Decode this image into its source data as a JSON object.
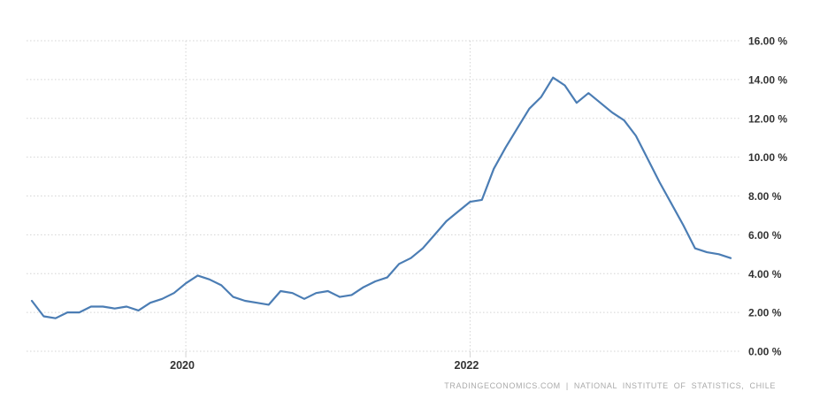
{
  "attribution": "TRADINGECONOMICS.COM | NATIONAL INSTITUTE OF STATISTICS, CHILE",
  "colors": {
    "line": "#4B7DB4",
    "grid": "#D4D4D4",
    "tick_label": "#333333",
    "attribution": "#AAAAAA",
    "background": "#FFFFFF"
  },
  "chart_data": {
    "type": "line",
    "grid": true,
    "legend": false,
    "ylim": [
      0,
      16
    ],
    "x": [
      "2018-12",
      "2019-01",
      "2019-02",
      "2019-03",
      "2019-04",
      "2019-05",
      "2019-06",
      "2019-07",
      "2019-08",
      "2019-09",
      "2019-10",
      "2019-11",
      "2019-12",
      "2020-01",
      "2020-02",
      "2020-03",
      "2020-04",
      "2020-05",
      "2020-06",
      "2020-07",
      "2020-08",
      "2020-09",
      "2020-10",
      "2020-11",
      "2020-12",
      "2021-01",
      "2021-02",
      "2021-03",
      "2021-04",
      "2021-05",
      "2021-06",
      "2021-07",
      "2021-08",
      "2021-09",
      "2021-10",
      "2021-11",
      "2021-12",
      "2022-01",
      "2022-02",
      "2022-03",
      "2022-04",
      "2022-05",
      "2022-06",
      "2022-07",
      "2022-08",
      "2022-09",
      "2022-10",
      "2022-11",
      "2022-12",
      "2023-01",
      "2023-02",
      "2023-03",
      "2023-04",
      "2023-05",
      "2023-06",
      "2023-07",
      "2023-08",
      "2023-09",
      "2023-10",
      "2023-11"
    ],
    "values": [
      2.6,
      1.8,
      1.7,
      2.0,
      2.0,
      2.3,
      2.3,
      2.2,
      2.3,
      2.1,
      2.5,
      2.7,
      3.0,
      3.5,
      3.9,
      3.7,
      3.4,
      2.8,
      2.6,
      2.5,
      2.4,
      3.1,
      3.0,
      2.7,
      3.0,
      3.1,
      2.8,
      2.9,
      3.3,
      3.6,
      3.8,
      4.5,
      4.8,
      5.3,
      6.0,
      6.7,
      7.2,
      7.7,
      7.8,
      9.4,
      10.5,
      11.5,
      12.5,
      13.1,
      14.1,
      13.7,
      12.8,
      13.3,
      12.8,
      12.3,
      11.9,
      11.1,
      9.9,
      8.7,
      7.6,
      6.5,
      5.3,
      5.1,
      5.0,
      4.8
    ],
    "y_ticks": [
      {
        "value": 16,
        "label": "16.00 %"
      },
      {
        "value": 14,
        "label": "14.00 %"
      },
      {
        "value": 12,
        "label": "12.00 %"
      },
      {
        "value": 10,
        "label": "10.00 %"
      },
      {
        "value": 8,
        "label": "8.00 %"
      },
      {
        "value": 6,
        "label": "6.00 %"
      },
      {
        "value": 4,
        "label": "4.00 %"
      },
      {
        "value": 2,
        "label": "2.00 %"
      },
      {
        "value": 0,
        "label": "0.00 %"
      }
    ],
    "x_ticks": [
      {
        "x": "2020-01",
        "label": "2020"
      },
      {
        "x": "2022-01",
        "label": "2022"
      }
    ]
  }
}
